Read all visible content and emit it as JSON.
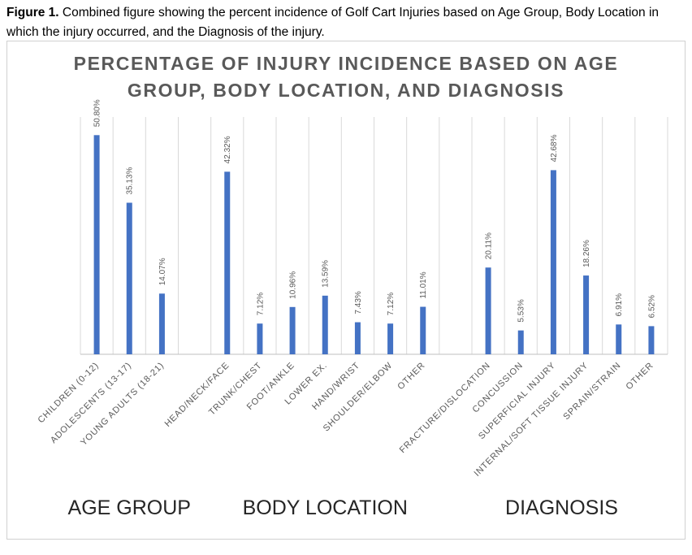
{
  "caption": {
    "figure_label": "Figure 1.",
    "text": "Combined figure showing the percent incidence of Golf Cart Injuries based on Age Group, Body Location in which the injury occurred, and the Diagnosis of the injury."
  },
  "chart_data": {
    "type": "bar",
    "title_line1": "PERCENTAGE OF INJURY INCIDENCE BASED ON AGE",
    "title_line2": "GROUP, BODY LOCATION, AND DIAGNOSIS",
    "xlabel": "",
    "ylabel": "",
    "ylim": [
      0,
      55
    ],
    "grid": "vertical",
    "legend": "none",
    "bar_color": "#4472c4",
    "categories": [
      "CHILDREN (0-12)",
      "ADOLESCENTS (13-17)",
      "YOUNG ADULTS (18-21)",
      "",
      "HEAD/NECK/FACE",
      "TRUNK/CHEST",
      "FOOT/ANKLE",
      "LOWER EX.",
      "HAND/WRIST",
      "SHOULDER/ELBOW",
      "OTHER",
      "",
      "FRACTURE/DISLOCATION",
      "CONCUSSION",
      "SUPERFICIAL INJURY",
      "INTERNAL/SOFT TISSUE INJURY",
      "SPRAIN/STRAIN",
      "OTHER"
    ],
    "values": [
      50.8,
      35.13,
      14.07,
      null,
      42.32,
      7.12,
      10.96,
      13.59,
      7.43,
      7.12,
      11.01,
      null,
      20.11,
      5.53,
      42.68,
      18.26,
      6.91,
      6.52
    ],
    "data_labels": [
      "50.80%",
      "35.13%",
      "14.07%",
      "",
      "42.32%",
      "7.12%",
      "10.96%",
      "13.59%",
      "7.43%",
      "7.12%",
      "11.01%",
      "",
      "20.11%",
      "5.53%",
      "42.68%",
      "18.26%",
      "6.91%",
      "6.52%"
    ],
    "groups": [
      {
        "name": "AGE GROUP",
        "first": 0,
        "last": 2
      },
      {
        "name": "BODY LOCATION",
        "first": 4,
        "last": 10
      },
      {
        "name": "DIAGNOSIS",
        "first": 12,
        "last": 17
      }
    ]
  }
}
